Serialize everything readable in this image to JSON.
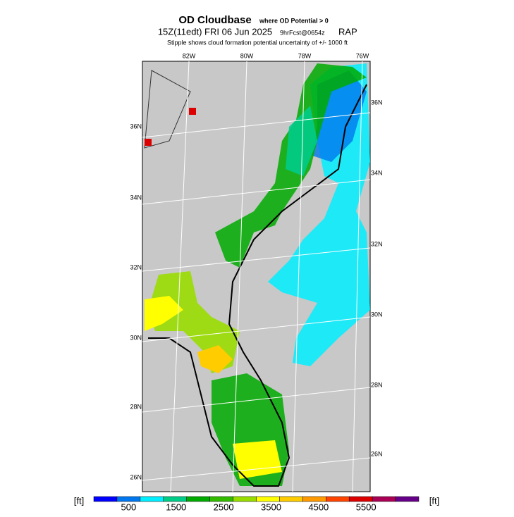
{
  "header": {
    "title": "OD Cloudbase",
    "title_note": "where OD Potential > 0",
    "valid_time": "15Z(11edt) FRI 06 Jun 2025",
    "forecast": "9hrFcst@0654z",
    "model": "RAP",
    "subtitle": "Stipple shows cloud formation potential uncertainty of +/-  1000 ft"
  },
  "map": {
    "lon_labels": [
      "82W",
      "80W",
      "78W",
      "76W"
    ],
    "lat_labels_left": [
      "36N",
      "34N",
      "32N",
      "30N",
      "28N",
      "26N"
    ],
    "lat_labels_right": [
      "36N",
      "34N",
      "32N",
      "30N",
      "28N",
      "26N"
    ]
  },
  "colorbar": {
    "unit": "[ft]",
    "colors": [
      "#0000ff",
      "#0077ee",
      "#00eeff",
      "#00cc88",
      "#00aa00",
      "#33bb00",
      "#99dd00",
      "#ffff00",
      "#ffcc00",
      "#ff9900",
      "#ff4400",
      "#dd0000",
      "#aa0055",
      "#660088"
    ],
    "labels": [
      500,
      1500,
      2500,
      3500,
      4500,
      5500
    ]
  }
}
